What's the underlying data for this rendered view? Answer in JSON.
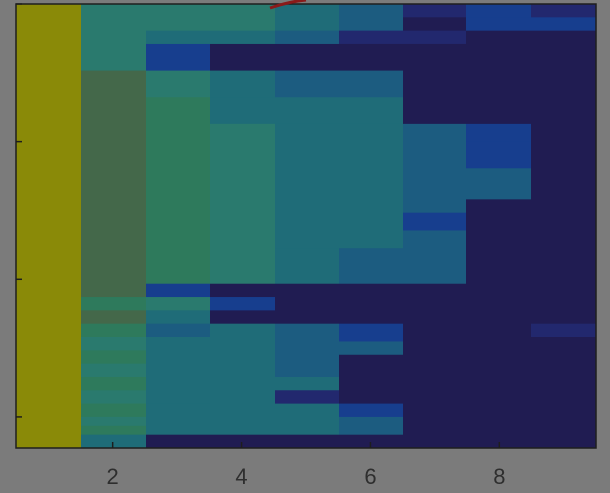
{
  "chart_data": {
    "type": "heatmap",
    "x": [
      1,
      2,
      3,
      4,
      5,
      6,
      7,
      8,
      9
    ],
    "xlim": [
      0.5,
      9.5
    ],
    "xticks": [
      2,
      4,
      6,
      8
    ],
    "xtick_labels": [
      "2",
      "4",
      "6",
      "8"
    ],
    "yticks_labeled": false,
    "colormap": "parula (dimmed)",
    "legend": "none",
    "grid": false,
    "colors": {
      "yellow": "#8a8a08",
      "green_olive": "#44684a",
      "green": "#2e7a5c",
      "green_teal": "#2a7a6e",
      "teal": "#1f6c78",
      "teal_blue": "#1c5c80",
      "blue": "#173e8e",
      "indigo": "#22286e",
      "navy": "#201c52"
    },
    "columns": [
      {
        "x": 1,
        "cells": [
          [
            0,
            100,
            "yellow"
          ]
        ]
      },
      {
        "x": 2,
        "cells": [
          [
            0,
            15,
            "green_teal"
          ],
          [
            15,
            21,
            "green_olive"
          ],
          [
            21,
            27,
            "green_olive"
          ],
          [
            27,
            55,
            "green_olive"
          ],
          [
            55,
            63,
            "green_olive"
          ],
          [
            63,
            66,
            "green_olive"
          ],
          [
            66,
            69,
            "green"
          ],
          [
            69,
            72,
            "green_olive"
          ],
          [
            72,
            75,
            "green"
          ],
          [
            75,
            78,
            "green_teal"
          ],
          [
            78,
            81,
            "green"
          ],
          [
            81,
            84,
            "green_teal"
          ],
          [
            84,
            87,
            "green"
          ],
          [
            87,
            90,
            "green_teal"
          ],
          [
            90,
            93,
            "green"
          ],
          [
            93,
            95,
            "green_teal"
          ],
          [
            95,
            97,
            "green"
          ],
          [
            97,
            100,
            "teal"
          ]
        ]
      },
      {
        "x": 3,
        "cells": [
          [
            0,
            6,
            "green_teal"
          ],
          [
            6,
            9,
            "teal"
          ],
          [
            9,
            15,
            "blue"
          ],
          [
            15,
            21,
            "green_teal"
          ],
          [
            21,
            55,
            "green"
          ],
          [
            55,
            63,
            "green"
          ],
          [
            63,
            66,
            "blue"
          ],
          [
            66,
            69,
            "green_teal"
          ],
          [
            69,
            72,
            "teal"
          ],
          [
            72,
            75,
            "teal_blue"
          ],
          [
            75,
            90,
            "teal"
          ],
          [
            90,
            97,
            "teal"
          ],
          [
            97,
            100,
            "navy"
          ]
        ]
      },
      {
        "x": 4,
        "cells": [
          [
            0,
            6,
            "green_teal"
          ],
          [
            6,
            9,
            "teal"
          ],
          [
            9,
            15,
            "navy"
          ],
          [
            15,
            21,
            "teal"
          ],
          [
            21,
            27,
            "teal"
          ],
          [
            27,
            55,
            "green_teal"
          ],
          [
            55,
            63,
            "green_teal"
          ],
          [
            63,
            66,
            "navy"
          ],
          [
            66,
            69,
            "blue"
          ],
          [
            69,
            72,
            "navy"
          ],
          [
            72,
            97,
            "teal"
          ],
          [
            97,
            100,
            "navy"
          ]
        ]
      },
      {
        "x": 5,
        "cells": [
          [
            0,
            6,
            "teal"
          ],
          [
            6,
            9,
            "teal_blue"
          ],
          [
            9,
            15,
            "navy"
          ],
          [
            15,
            21,
            "teal_blue"
          ],
          [
            21,
            27,
            "teal"
          ],
          [
            27,
            55,
            "teal"
          ],
          [
            55,
            63,
            "teal"
          ],
          [
            63,
            66,
            "navy"
          ],
          [
            66,
            72,
            "navy"
          ],
          [
            72,
            75,
            "teal_blue"
          ],
          [
            75,
            84,
            "teal_blue"
          ],
          [
            84,
            87,
            "teal"
          ],
          [
            87,
            90,
            "indigo"
          ],
          [
            90,
            97,
            "teal"
          ],
          [
            97,
            100,
            "navy"
          ]
        ]
      },
      {
        "x": 6,
        "cells": [
          [
            0,
            3,
            "teal_blue"
          ],
          [
            3,
            6,
            "teal_blue"
          ],
          [
            6,
            9,
            "indigo"
          ],
          [
            9,
            15,
            "navy"
          ],
          [
            15,
            21,
            "teal_blue"
          ],
          [
            21,
            27,
            "teal"
          ],
          [
            27,
            55,
            "teal"
          ],
          [
            55,
            63,
            "teal_blue"
          ],
          [
            63,
            66,
            "navy"
          ],
          [
            66,
            72,
            "navy"
          ],
          [
            72,
            76,
            "blue"
          ],
          [
            76,
            79,
            "teal_blue"
          ],
          [
            79,
            90,
            "navy"
          ],
          [
            90,
            93,
            "blue"
          ],
          [
            93,
            97,
            "teal_blue"
          ],
          [
            97,
            100,
            "navy"
          ]
        ]
      },
      {
        "x": 7,
        "cells": [
          [
            0,
            3,
            "indigo"
          ],
          [
            3,
            6,
            "navy"
          ],
          [
            6,
            9,
            "indigo"
          ],
          [
            9,
            24,
            "navy"
          ],
          [
            24,
            27,
            "navy"
          ],
          [
            27,
            37,
            "teal_blue"
          ],
          [
            37,
            47,
            "teal_blue"
          ],
          [
            47,
            51,
            "blue"
          ],
          [
            51,
            55,
            "teal_blue"
          ],
          [
            55,
            63,
            "teal_blue"
          ],
          [
            63,
            100,
            "navy"
          ]
        ]
      },
      {
        "x": 8,
        "cells": [
          [
            0,
            3,
            "blue"
          ],
          [
            3,
            6,
            "blue"
          ],
          [
            6,
            27,
            "navy"
          ],
          [
            27,
            31,
            "blue"
          ],
          [
            31,
            37,
            "blue"
          ],
          [
            37,
            44,
            "teal_blue"
          ],
          [
            44,
            100,
            "navy"
          ]
        ]
      },
      {
        "x": 9,
        "cells": [
          [
            0,
            3,
            "indigo"
          ],
          [
            3,
            6,
            "blue"
          ],
          [
            6,
            72,
            "navy"
          ],
          [
            72,
            75,
            "indigo"
          ],
          [
            75,
            100,
            "navy"
          ]
        ]
      }
    ],
    "y_tick_positions": [
      0,
      31,
      62,
      93
    ]
  },
  "annotation": {
    "color": "#8a1a1a"
  }
}
